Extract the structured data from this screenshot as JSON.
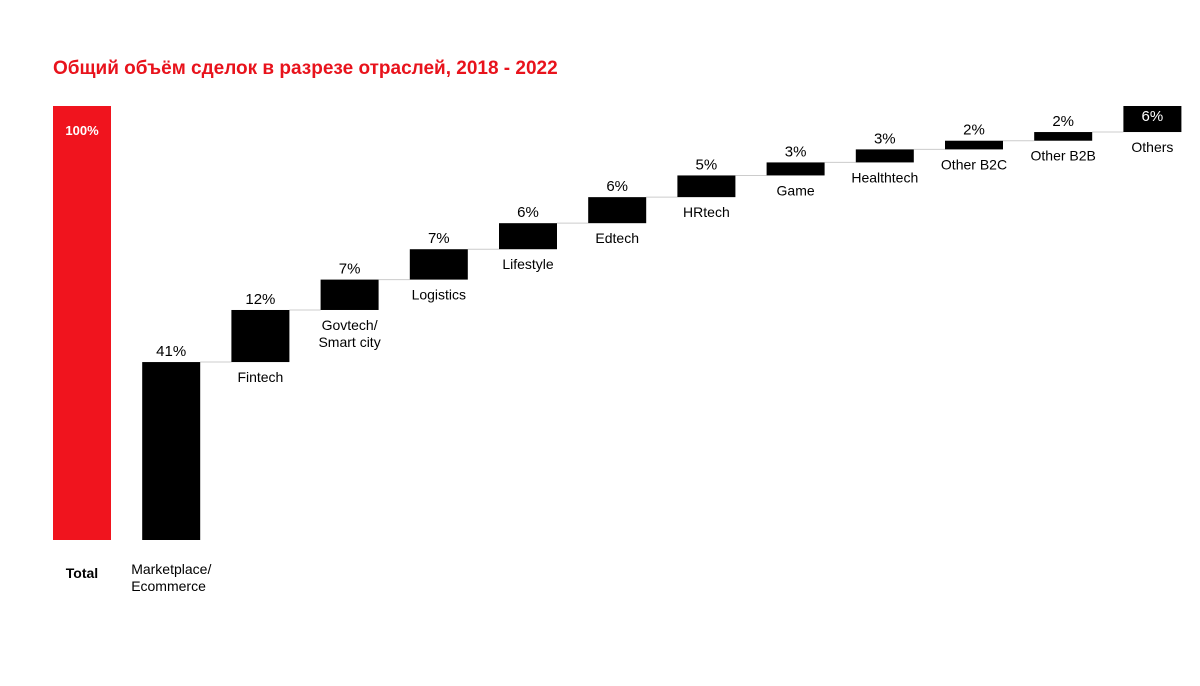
{
  "chart_data": {
    "type": "bar",
    "subtype": "waterfall",
    "title": "Общий объём сделок в разрезе отраслей, 2018 - 2022",
    "xlabel": "",
    "ylabel": "",
    "ylim": [
      0,
      100
    ],
    "grid": false,
    "legend": "none",
    "categories": [
      "Total",
      "Marketplace/ Ecommerce",
      "Fintech",
      "Govtech/ Smart city",
      "Logistics",
      "Lifestyle",
      "Edtech",
      "HRtech",
      "Game",
      "Healthtech",
      "Other B2C",
      "Other B2B",
      "Others"
    ],
    "values": [
      100,
      41,
      12,
      7,
      7,
      6,
      6,
      5,
      3,
      3,
      2,
      2,
      6
    ],
    "data_labels": [
      "100%",
      "41%",
      "12%",
      "7%",
      "7%",
      "6%",
      "6%",
      "5%",
      "3%",
      "3%",
      "2%",
      "2%",
      "6%"
    ],
    "category_label_lines": [
      [
        "Total"
      ],
      [
        "Marketplace/",
        "Ecommerce"
      ],
      [
        "Fintech"
      ],
      [
        "Govtech/",
        "Smart city"
      ],
      [
        "Logistics"
      ],
      [
        "Lifestyle"
      ],
      [
        "Edtech"
      ],
      [
        "HRtech"
      ],
      [
        "Game"
      ],
      [
        "Healthtech"
      ],
      [
        "Other B2C"
      ],
      [
        "Other B2B"
      ],
      [
        "Others"
      ]
    ],
    "colors": {
      "total": "#f0141e",
      "step": "#000000",
      "connector": "#cccccc",
      "title": "#e8131c"
    }
  }
}
